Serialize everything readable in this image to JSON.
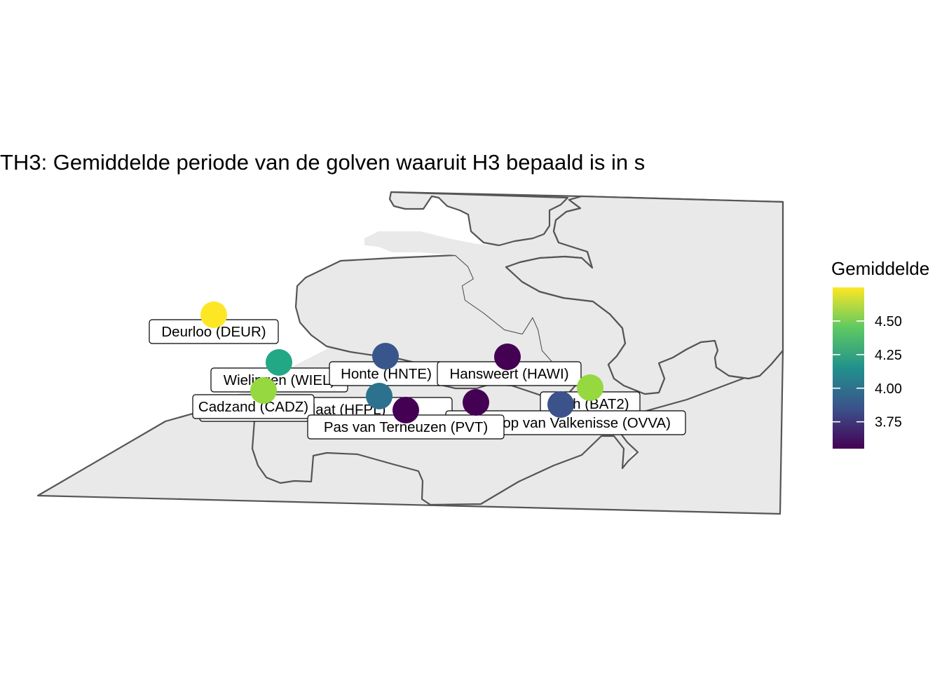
{
  "title": "TH3: Gemiddelde periode van de golven waaruit H3 bepaald is in s",
  "legend": {
    "title": "Gemiddelde",
    "min": 3.55,
    "max": 4.75,
    "ticks": [
      "4.50",
      "4.25",
      "4.00",
      "3.75"
    ],
    "tick_values": [
      4.5,
      4.25,
      4.0,
      3.75
    ],
    "colors": [
      "#440154",
      "#3b528b",
      "#21918c",
      "#5ec962",
      "#fde725"
    ]
  },
  "land_color": "#e9e9e9",
  "border_color": "#555555",
  "stations": [
    {
      "id": "DEUR",
      "label": "Deurloo (DEUR)",
      "value": 4.75,
      "color": "#fde725"
    },
    {
      "id": "WIEL",
      "label": "Wielingen (WIEL)",
      "value": 4.2,
      "color": "#22a884"
    },
    {
      "id": "CADZ",
      "label": "Cadzand (CADZ)",
      "value": 4.6,
      "color": "#95d840"
    },
    {
      "id": "HNTE",
      "label": "Honte (HNTE)",
      "value": 3.85,
      "color": "#39568c"
    },
    {
      "id": "HAWI",
      "label": "Hansweert (HAWI)",
      "value": 3.58,
      "color": "#440154"
    },
    {
      "id": "HFPL",
      "label": "Hoofdplaat (HFPL)",
      "value": 3.95,
      "color": "#2c728e"
    },
    {
      "id": "PVT",
      "label": "Pas van Terneuzen (PVT)",
      "value": 3.6,
      "color": "#440154"
    },
    {
      "id": "OVVA",
      "label": "Overloop van Valkenisse (OVVA)",
      "value": 3.6,
      "color": "#440154"
    },
    {
      "id": "BAT2",
      "label": "Bath (BAT2)",
      "value": 4.6,
      "color": "#95d840"
    },
    {
      "id": "OVVA2",
      "label": "",
      "value": 3.75,
      "color": "#3b528b"
    }
  ]
}
